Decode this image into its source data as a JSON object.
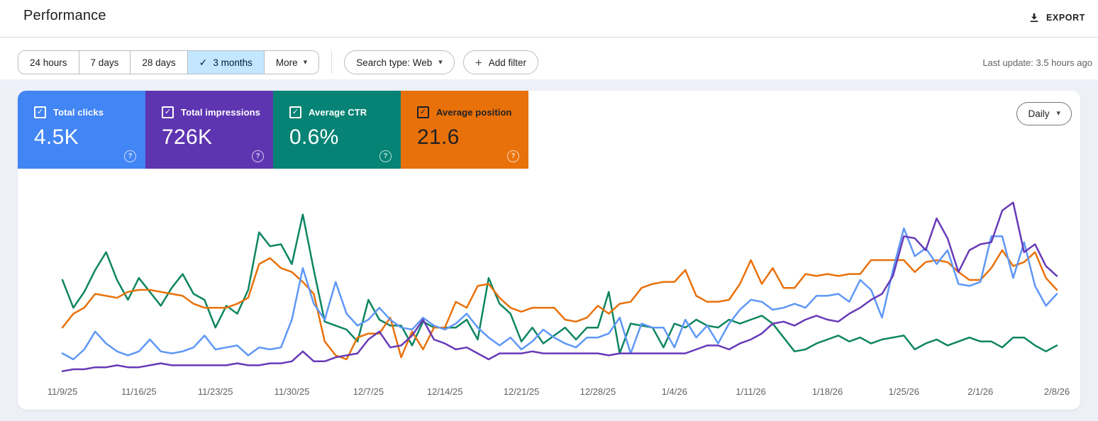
{
  "header": {
    "title": "Performance",
    "export_label": "EXPORT"
  },
  "icons": {
    "check": "✓",
    "caret_down": "▾",
    "plus": "+",
    "help": "?"
  },
  "filters": {
    "date_ranges": [
      {
        "label": "24 hours",
        "selected": false
      },
      {
        "label": "7 days",
        "selected": false
      },
      {
        "label": "28 days",
        "selected": false
      },
      {
        "label": "3 months",
        "selected": true
      },
      {
        "label": "More",
        "selected": false
      }
    ],
    "search_type_label": "Search type: Web",
    "add_filter_label": "Add filter",
    "last_update": "Last update: 3.5 hours ago"
  },
  "metrics": {
    "cards": [
      {
        "label": "Total clicks",
        "value": "4.5K",
        "color": "#4285f4",
        "text_color": "#ffffff",
        "checked": true
      },
      {
        "label": "Total impressions",
        "value": "726K",
        "color": "#5e35b1",
        "text_color": "#ffffff",
        "checked": true
      },
      {
        "label": "Average CTR",
        "value": "0.6%",
        "color": "#068374",
        "text_color": "#ffffff",
        "checked": true
      },
      {
        "label": "Average position",
        "value": "21.6",
        "color": "#e8710a",
        "text_color": "#202124",
        "checked": true
      }
    ]
  },
  "granularity": {
    "label": "Daily"
  },
  "chart_data": {
    "type": "line",
    "title": "Search performance over time (daily)",
    "x_start_date": "11/9/25",
    "x_end_date": "2/8/26",
    "points_per_series": 92,
    "x_tick_labels": [
      "11/9/25",
      "11/16/25",
      "11/23/25",
      "11/30/25",
      "12/7/25",
      "12/14/25",
      "12/21/25",
      "12/28/25",
      "1/4/26",
      "1/11/26",
      "1/18/26",
      "1/25/26",
      "2/1/26",
      "2/8/26"
    ],
    "ylim": [
      0,
      100
    ],
    "grid": false,
    "legend": "none - line colors match metric card colors",
    "y_units": "relative scale 0-100 (each series has its own hidden axis)",
    "draw_order": [
      2,
      3,
      0,
      1
    ],
    "series": [
      {
        "name": "Clicks",
        "color": "#5e97f6",
        "values": [
          13,
          10,
          15,
          24,
          18,
          14,
          12,
          14,
          20,
          14,
          13,
          14,
          16,
          22,
          15,
          16,
          17,
          12,
          16,
          15,
          16,
          30,
          56,
          38,
          30,
          49,
          33,
          27,
          30,
          36,
          30,
          26,
          25,
          31,
          27,
          25,
          28,
          33,
          26,
          21,
          17,
          21,
          15,
          19,
          25,
          21,
          18,
          16,
          21,
          21,
          23,
          31,
          13,
          28,
          26,
          26,
          16,
          30,
          21,
          27,
          18,
          28,
          35,
          40,
          39,
          35,
          36,
          38,
          36,
          42,
          42,
          43,
          39,
          50,
          45,
          31,
          55,
          76,
          62,
          66,
          58,
          65,
          48,
          47,
          49,
          72,
          72,
          51,
          69,
          47,
          37,
          43
        ]
      },
      {
        "name": "Impressions",
        "color": "#673ab7",
        "values": [
          4,
          5,
          5,
          6,
          6,
          7,
          6,
          6,
          7,
          8,
          7,
          7,
          7,
          7,
          7,
          7,
          8,
          7,
          7,
          8,
          8,
          9,
          14,
          9,
          9,
          11,
          12,
          13,
          20,
          24,
          16,
          17,
          22,
          30,
          20,
          18,
          15,
          16,
          13,
          10,
          13,
          13,
          13,
          14,
          13,
          13,
          13,
          13,
          13,
          13,
          12,
          13,
          13,
          13,
          13,
          13,
          13,
          13,
          15,
          17,
          17,
          15,
          18,
          20,
          23,
          28,
          29,
          27,
          30,
          32,
          30,
          29,
          33,
          36,
          40,
          43,
          52,
          72,
          71,
          65,
          81,
          71,
          54,
          65,
          68,
          69,
          85,
          89,
          64,
          68,
          57,
          52
        ]
      },
      {
        "name": "CTR",
        "color": "#0d8562",
        "values": [
          50,
          36,
          44,
          55,
          64,
          50,
          40,
          51,
          44,
          37,
          46,
          53,
          43,
          40,
          26,
          37,
          33,
          45,
          74,
          67,
          68,
          58,
          83,
          55,
          29,
          27,
          25,
          19,
          40,
          30,
          27,
          27,
          17,
          29,
          26,
          26,
          26,
          30,
          20,
          51,
          38,
          33,
          19,
          26,
          18,
          22,
          26,
          20,
          26,
          26,
          44,
          13,
          28,
          27,
          26,
          16,
          28,
          26,
          30,
          27,
          26,
          30,
          28,
          30,
          32,
          28,
          21,
          14,
          15,
          18,
          20,
          22,
          19,
          21,
          18,
          20,
          21,
          22,
          15,
          18,
          20,
          17,
          19,
          21,
          19,
          19,
          16,
          21,
          21,
          17,
          14,
          17
        ]
      },
      {
        "name": "Position",
        "color": "#e8710a",
        "values": [
          26,
          33,
          36,
          43,
          42,
          41,
          44,
          45,
          45,
          44,
          43,
          42,
          38,
          36,
          36,
          36,
          38,
          41,
          58,
          61,
          56,
          54,
          49,
          43,
          19,
          12,
          10,
          21,
          23,
          23,
          31,
          11,
          24,
          15,
          26,
          26,
          39,
          36,
          47,
          48,
          41,
          36,
          34,
          36,
          36,
          36,
          30,
          29,
          31,
          37,
          33,
          38,
          39,
          46,
          48,
          49,
          49,
          55,
          42,
          39,
          39,
          40,
          48,
          60,
          48,
          56,
          46,
          46,
          53,
          52,
          53,
          52,
          53,
          53,
          60,
          60,
          60,
          60,
          54,
          59,
          60,
          59,
          54,
          50,
          50,
          56,
          65,
          57,
          59,
          64,
          51,
          45
        ]
      }
    ]
  }
}
